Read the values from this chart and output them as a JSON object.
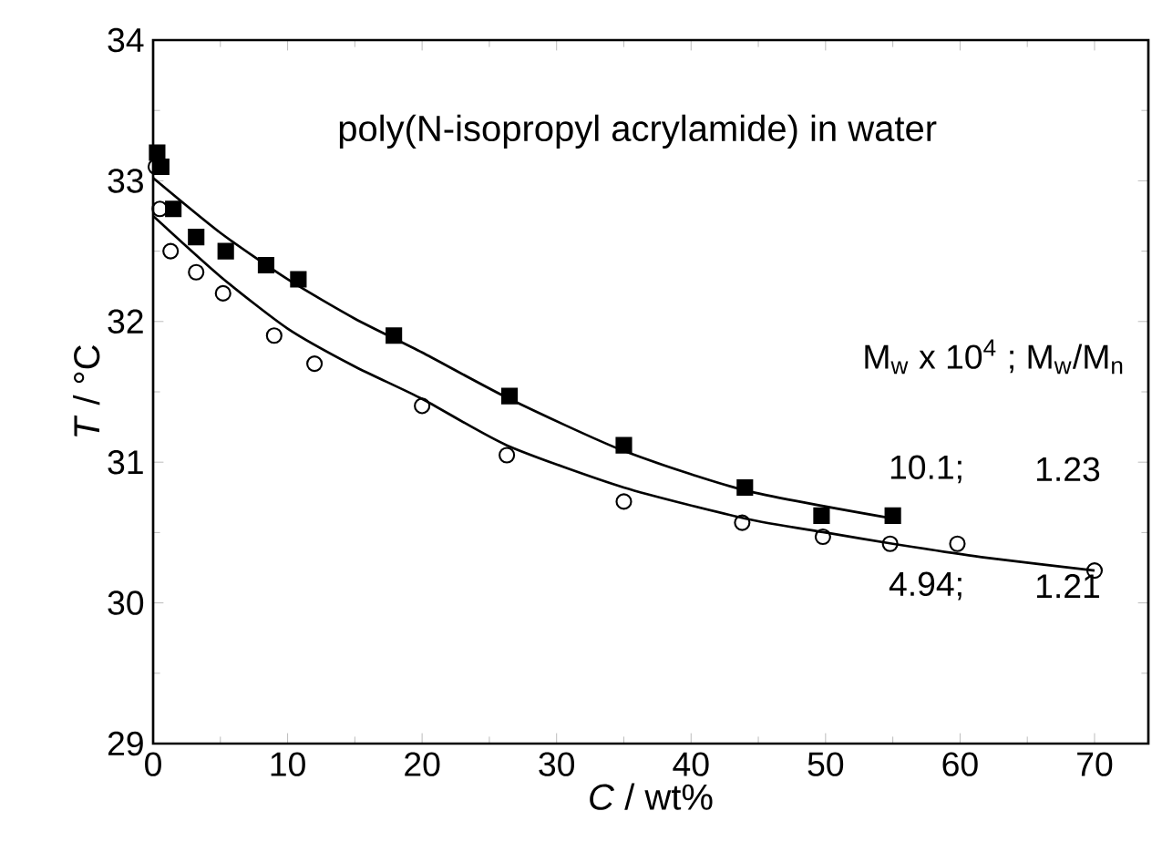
{
  "chart_data": {
    "type": "scatter",
    "title": "poly(N-isopropyl acrylamide) in water",
    "xlabel": "*C* / wt%",
    "ylabel": "*T* / °C",
    "xlim": [
      0,
      74
    ],
    "ylim": [
      29,
      34
    ],
    "xticks": [
      0,
      10,
      20,
      30,
      40,
      50,
      60,
      70
    ],
    "yticks": [
      29,
      30,
      31,
      32,
      33,
      34
    ],
    "grid": false,
    "annotations": [
      "M$_{w}$ x 10$^{4}$ ; M$_{w}$/M$_{n}$",
      "10.1;",
      "1.23",
      "4.94;",
      "1.21"
    ],
    "series": [
      {
        "marker": "square",
        "color": "#000000",
        "x": [
          0.3,
          0.6,
          1.5,
          3.2,
          5.4,
          8.4,
          10.8,
          17.9,
          26.5,
          35,
          44,
          49.7,
          55
        ],
        "values": [
          33.2,
          33.1,
          32.8,
          32.6,
          32.5,
          32.4,
          32.3,
          31.9,
          31.47,
          31.12,
          30.82,
          30.62,
          30.62
        ]
      },
      {
        "marker": "circle",
        "color": "#000000",
        "x": [
          0.2,
          0.5,
          1.3,
          3.2,
          5.2,
          9,
          12,
          20,
          26.3,
          35,
          43.8,
          49.8,
          54.8,
          59.8,
          70
        ],
        "values": [
          33.1,
          32.8,
          32.5,
          32.35,
          32.2,
          31.9,
          31.7,
          31.4,
          31.05,
          30.72,
          30.57,
          30.47,
          30.42,
          30.42,
          30.23
        ]
      },
      {
        "type": "line",
        "marker": "none",
        "color": "#000000",
        "x": [
          0,
          5,
          10,
          15,
          20,
          26.5,
          35,
          44,
          55
        ],
        "values": [
          33.02,
          32.63,
          32.3,
          32.02,
          31.78,
          31.45,
          31.08,
          30.8,
          30.6
        ]
      },
      {
        "type": "line",
        "marker": "none",
        "color": "#000000",
        "x": [
          0,
          5,
          10,
          15,
          20,
          26.3,
          35,
          44,
          50,
          55,
          62,
          70
        ],
        "values": [
          32.75,
          32.32,
          31.95,
          31.68,
          31.45,
          31.12,
          30.82,
          30.6,
          30.5,
          30.42,
          30.32,
          30.23
        ]
      }
    ]
  }
}
